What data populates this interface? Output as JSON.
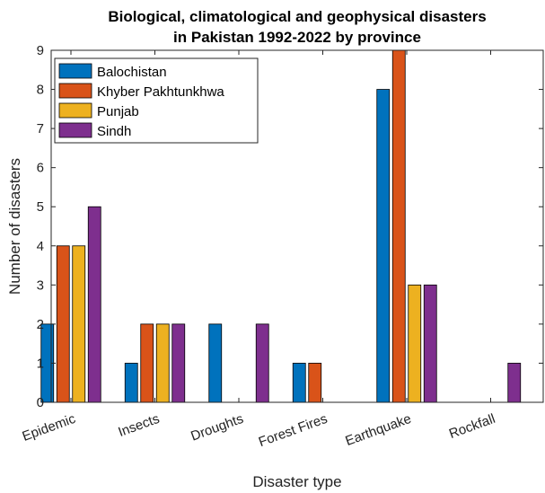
{
  "chart_data": {
    "type": "bar",
    "title_lines": [
      "Biological, climatological and geophysical disasters",
      "in Pakistan 1992-2022 by province"
    ],
    "xlabel": "Disaster type",
    "ylabel": "Number of disasters",
    "ylim": [
      0,
      9
    ],
    "yticks": [
      0,
      1,
      2,
      3,
      4,
      5,
      6,
      7,
      8,
      9
    ],
    "categories": [
      "Epidemic",
      "Insects",
      "Droughts",
      "Forest Fires",
      "Earthquake",
      "Rockfall"
    ],
    "series": [
      {
        "name": "Balochistan",
        "color": "#0072BD",
        "values": [
          2,
          1,
          2,
          1,
          8,
          0
        ]
      },
      {
        "name": "Khyber Pakhtunkhwa",
        "color": "#D95319",
        "values": [
          4,
          2,
          0,
          1,
          9,
          0
        ]
      },
      {
        "name": "Punjab",
        "color": "#EDB120",
        "values": [
          4,
          2,
          0,
          0,
          3,
          0
        ]
      },
      {
        "name": "Sindh",
        "color": "#7E2F8E",
        "values": [
          5,
          2,
          2,
          0,
          3,
          1
        ]
      }
    ],
    "grid": false,
    "legend_position": "top-left"
  }
}
